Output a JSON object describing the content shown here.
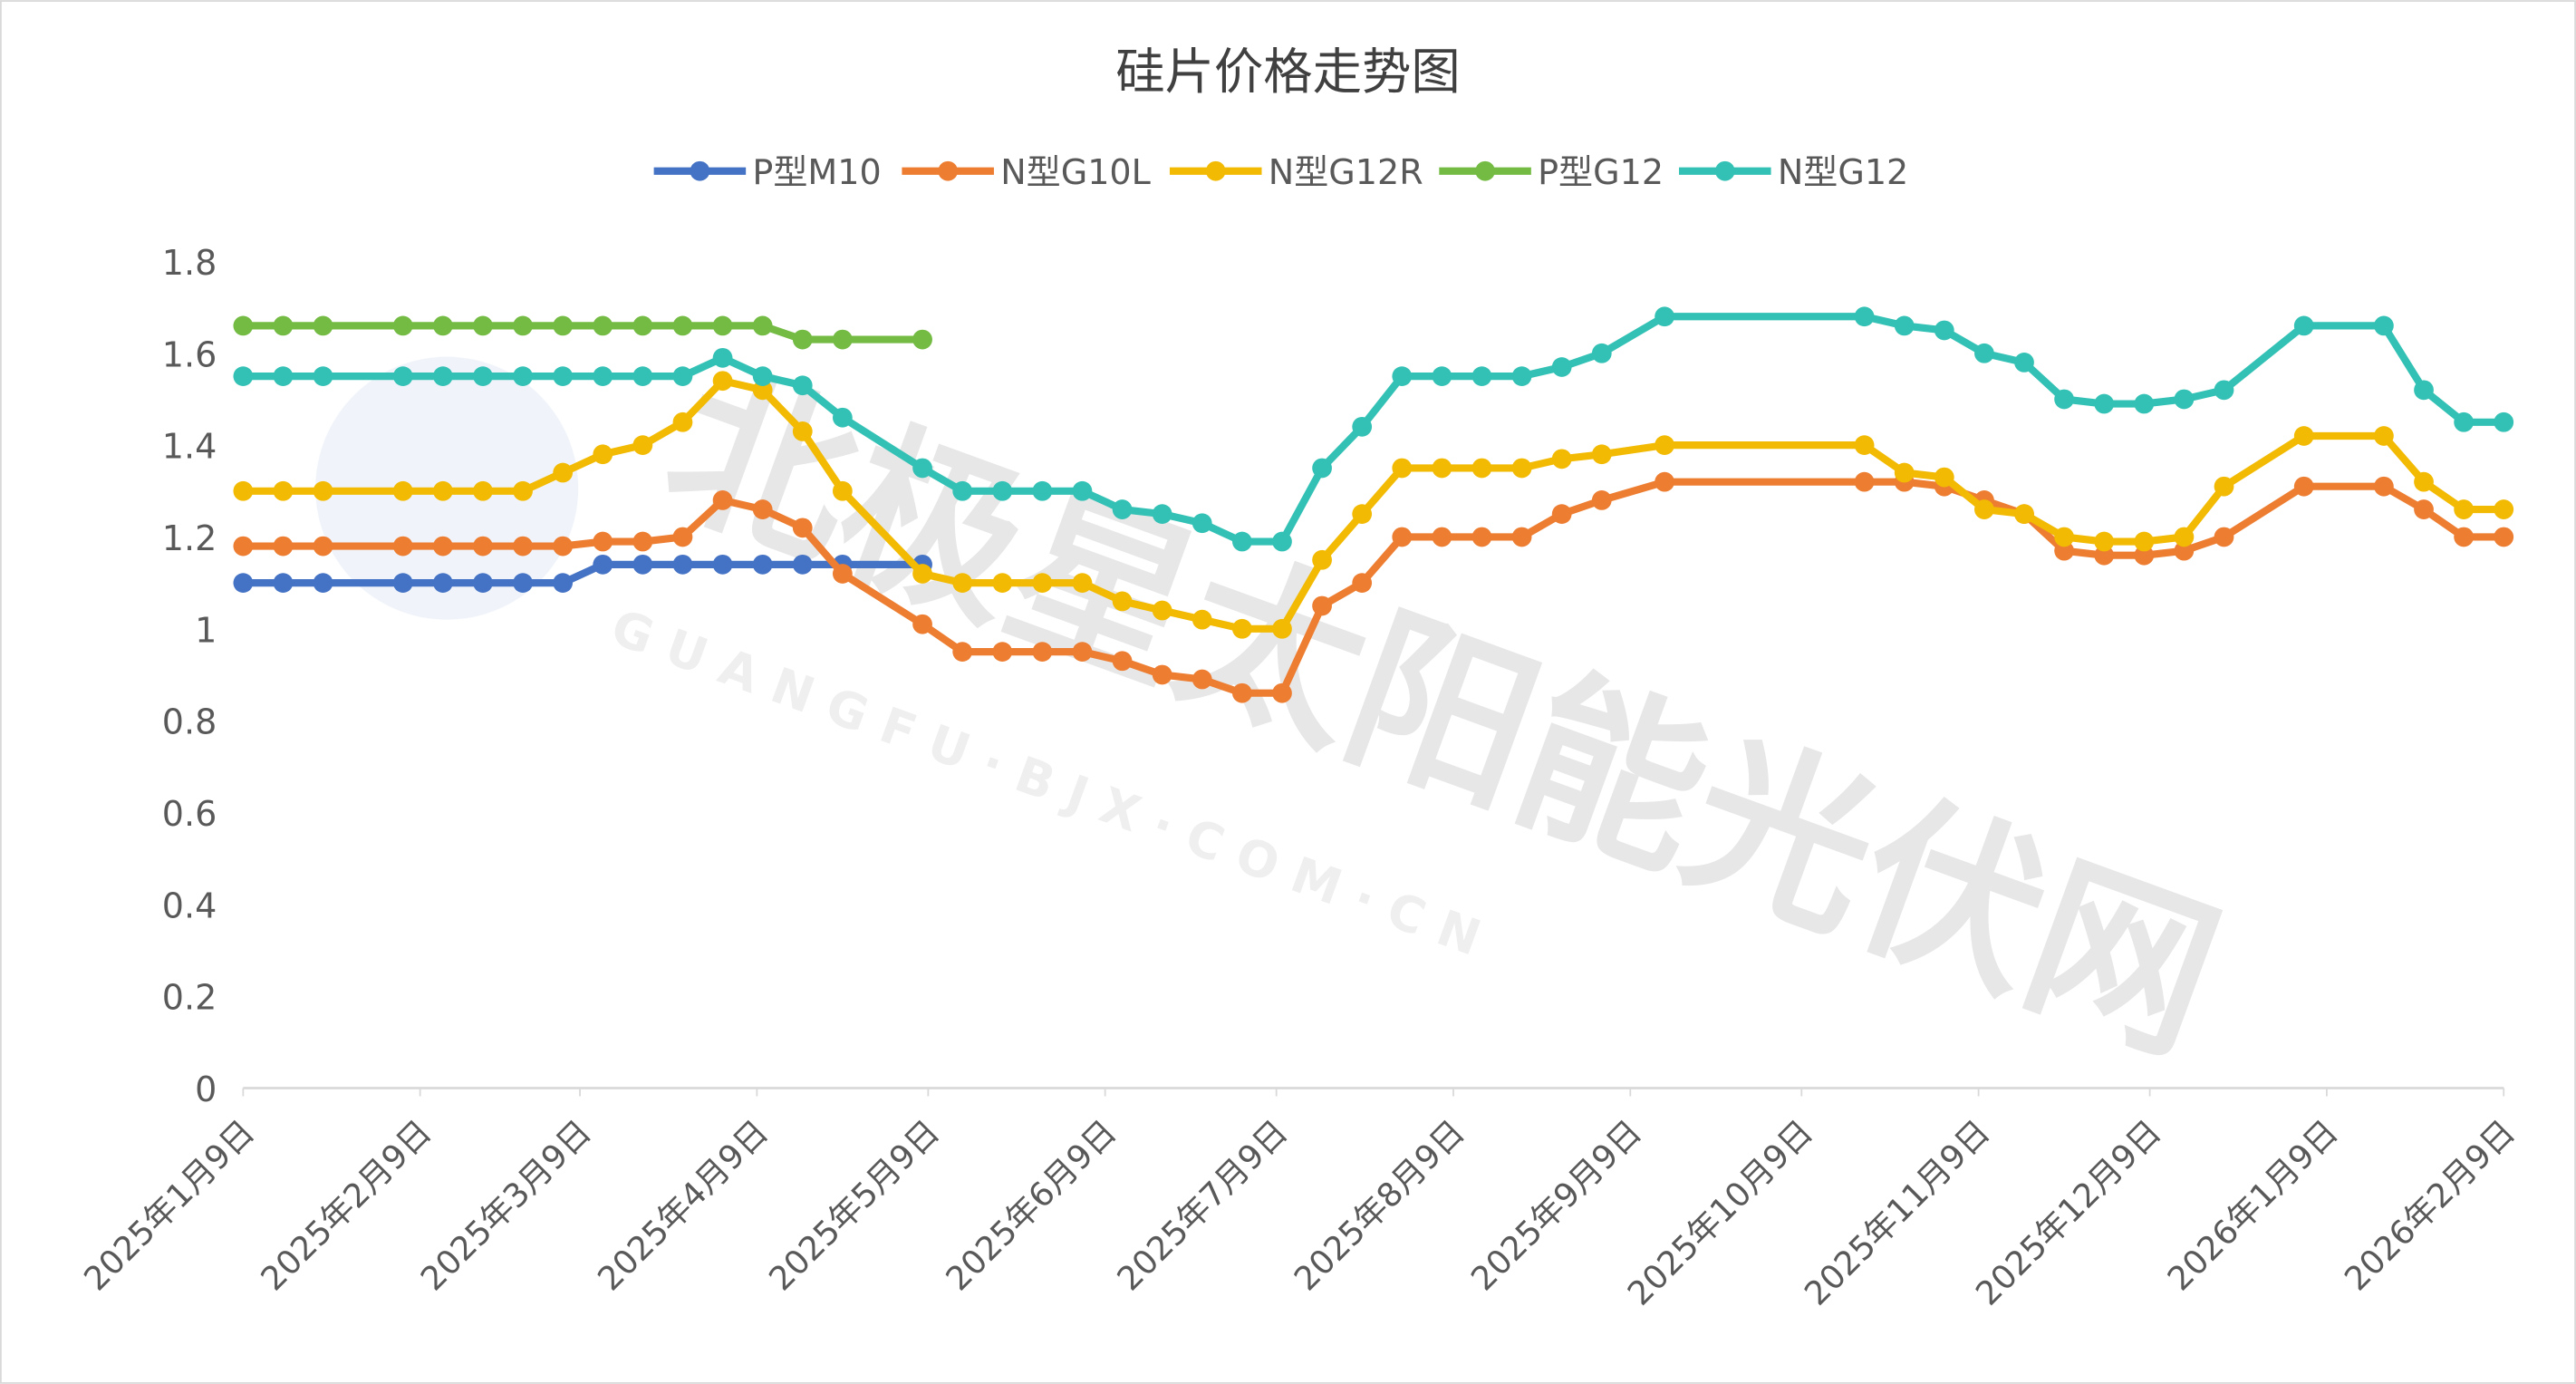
{
  "chart_data": {
    "type": "line",
    "title": "硅片价格走势图",
    "xlabel": "",
    "ylabel": "",
    "ylim": [
      0,
      1.8
    ],
    "yticks": [
      "0",
      "0.2",
      "0.4",
      "0.6",
      "0.8",
      "1",
      "1.2",
      "1.4",
      "1.6",
      "1.8"
    ],
    "xlim": [
      "2025-01-09",
      "2026-02-09"
    ],
    "xticks": [
      {
        "date": "2025-01-09",
        "label": "2025年1月9日"
      },
      {
        "date": "2025-02-09",
        "label": "2025年2月9日"
      },
      {
        "date": "2025-03-09",
        "label": "2025年3月9日"
      },
      {
        "date": "2025-04-09",
        "label": "2025年4月9日"
      },
      {
        "date": "2025-05-09",
        "label": "2025年5月9日"
      },
      {
        "date": "2025-06-09",
        "label": "2025年6月9日"
      },
      {
        "date": "2025-07-09",
        "label": "2025年7月9日"
      },
      {
        "date": "2025-08-09",
        "label": "2025年8月9日"
      },
      {
        "date": "2025-09-09",
        "label": "2025年9月9日"
      },
      {
        "date": "2025-10-09",
        "label": "2025年10月9日"
      },
      {
        "date": "2025-11-09",
        "label": "2025年11月9日"
      },
      {
        "date": "2025-12-09",
        "label": "2025年12月9日"
      },
      {
        "date": "2026-01-09",
        "label": "2026年1月9日"
      },
      {
        "date": "2026-02-09",
        "label": "2026年2月9日"
      }
    ],
    "grid": false,
    "legend_position": "top",
    "x": [
      "2025-01-09",
      "2025-01-16",
      "2025-01-23",
      "2025-02-06",
      "2025-02-13",
      "2025-02-20",
      "2025-02-27",
      "2025-03-06",
      "2025-03-13",
      "2025-03-20",
      "2025-03-27",
      "2025-04-03",
      "2025-04-10",
      "2025-04-17",
      "2025-04-24",
      "2025-05-08",
      "2025-05-15",
      "2025-05-22",
      "2025-05-29",
      "2025-06-05",
      "2025-06-12",
      "2025-06-19",
      "2025-06-26",
      "2025-07-03",
      "2025-07-10",
      "2025-07-17",
      "2025-07-24",
      "2025-07-31",
      "2025-08-07",
      "2025-08-14",
      "2025-08-21",
      "2025-08-28",
      "2025-09-04",
      "2025-09-15",
      "2025-10-20",
      "2025-10-27",
      "2025-11-03",
      "2025-11-10",
      "2025-11-17",
      "2025-11-24",
      "2025-12-01",
      "2025-12-08",
      "2025-12-15",
      "2025-12-22",
      "2026-01-05",
      "2026-01-19",
      "2026-01-26",
      "2026-02-02",
      "2026-02-09"
    ],
    "series": [
      {
        "name": "P型M10",
        "color": "#4472C4",
        "values": [
          1.1,
          1.1,
          1.1,
          1.1,
          1.1,
          1.1,
          1.1,
          1.1,
          1.14,
          1.14,
          1.14,
          1.14,
          1.14,
          1.14,
          1.14,
          1.14,
          null,
          null,
          null,
          null,
          null,
          null,
          null,
          null,
          null,
          null,
          null,
          null,
          null,
          null,
          null,
          null,
          null,
          null,
          null,
          null,
          null,
          null,
          null,
          null,
          null,
          null,
          null,
          null,
          null,
          null,
          null,
          null,
          null
        ]
      },
      {
        "name": "N型G10L",
        "color": "#ED7D31",
        "values": [
          1.18,
          1.18,
          1.18,
          1.18,
          1.18,
          1.18,
          1.18,
          1.18,
          1.19,
          1.19,
          1.2,
          1.28,
          1.26,
          1.22,
          1.12,
          1.01,
          0.95,
          0.95,
          0.95,
          0.95,
          0.93,
          0.9,
          0.89,
          0.86,
          0.86,
          1.05,
          1.1,
          1.2,
          1.2,
          1.2,
          1.2,
          1.25,
          1.28,
          1.32,
          1.32,
          1.32,
          1.31,
          1.28,
          1.25,
          1.17,
          1.16,
          1.16,
          1.17,
          1.2,
          1.31,
          1.31,
          1.26,
          1.2,
          1.2
        ]
      },
      {
        "name": "N型G12R",
        "color": "#F2BA02",
        "values": [
          1.3,
          1.3,
          1.3,
          1.3,
          1.3,
          1.3,
          1.3,
          1.34,
          1.38,
          1.4,
          1.45,
          1.54,
          1.52,
          1.43,
          1.3,
          1.12,
          1.1,
          1.1,
          1.1,
          1.1,
          1.06,
          1.04,
          1.02,
          1.0,
          1.0,
          1.15,
          1.25,
          1.35,
          1.35,
          1.35,
          1.35,
          1.37,
          1.38,
          1.4,
          1.4,
          1.34,
          1.33,
          1.26,
          1.25,
          1.2,
          1.19,
          1.19,
          1.2,
          1.31,
          1.42,
          1.42,
          1.32,
          1.26,
          1.26
        ]
      },
      {
        "name": "P型G12",
        "color": "#74BB44",
        "values": [
          1.66,
          1.66,
          1.66,
          1.66,
          1.66,
          1.66,
          1.66,
          1.66,
          1.66,
          1.66,
          1.66,
          1.66,
          1.66,
          1.63,
          1.63,
          1.63,
          null,
          null,
          null,
          null,
          null,
          null,
          null,
          null,
          null,
          null,
          null,
          null,
          null,
          null,
          null,
          null,
          null,
          null,
          null,
          null,
          null,
          null,
          null,
          null,
          null,
          null,
          null,
          null,
          null,
          null,
          null,
          null,
          null
        ]
      },
      {
        "name": "N型G12",
        "color": "#32C1B4",
        "values": [
          1.55,
          1.55,
          1.55,
          1.55,
          1.55,
          1.55,
          1.55,
          1.55,
          1.55,
          1.55,
          1.55,
          1.59,
          1.55,
          1.53,
          1.46,
          1.35,
          1.3,
          1.3,
          1.3,
          1.3,
          1.26,
          1.25,
          1.23,
          1.19,
          1.19,
          1.35,
          1.44,
          1.55,
          1.55,
          1.55,
          1.55,
          1.57,
          1.6,
          1.68,
          1.68,
          1.66,
          1.65,
          1.6,
          1.58,
          1.5,
          1.49,
          1.49,
          1.5,
          1.52,
          1.66,
          1.66,
          1.52,
          1.45,
          1.45
        ]
      }
    ]
  },
  "watermark": {
    "cn": "北极星太阳能光伏网",
    "en": "G U A N G F U · B J X · C O M · C N"
  }
}
